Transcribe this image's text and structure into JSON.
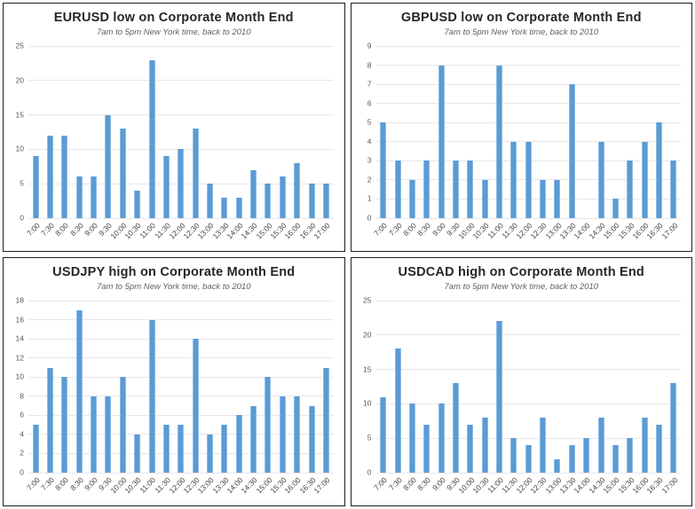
{
  "chart_data": [
    {
      "type": "bar",
      "title": "EURUSD low on Corporate Month End",
      "subtitle": "7am to 5pm New York time, back to 2010",
      "categories": [
        "7:00",
        "7:30",
        "8:00",
        "8:30",
        "9:00",
        "9:30",
        "10:00",
        "10:30",
        "11:00",
        "11:30",
        "12:00",
        "12:30",
        "13:00",
        "13:30",
        "14:00",
        "14:30",
        "15:00",
        "15:30",
        "16:00",
        "16:30",
        "17:00"
      ],
      "values": [
        9,
        12,
        12,
        6,
        6,
        15,
        13,
        4,
        23,
        9,
        10,
        13,
        5,
        3,
        3,
        7,
        5,
        6,
        8,
        5,
        5
      ],
      "xlabel": "",
      "ylabel": "",
      "ylim": [
        0,
        25
      ],
      "ytick_step": 5,
      "grid": true,
      "legend": "none"
    },
    {
      "type": "bar",
      "title": "GBPUSD low on Corporate Month End",
      "subtitle": "7am to 5pm New York time, back to 2010",
      "categories": [
        "7:00",
        "7:30",
        "8:00",
        "8:30",
        "9:00",
        "9:30",
        "10:00",
        "10:30",
        "11:00",
        "11:30",
        "12:00",
        "12:30",
        "13:00",
        "13:30",
        "14:00",
        "14:30",
        "15:00",
        "15:30",
        "16:00",
        "16:30",
        "17:00"
      ],
      "values": [
        5,
        3,
        2,
        3,
        8,
        3,
        3,
        2,
        8,
        4,
        4,
        2,
        2,
        7,
        0,
        4,
        1,
        3,
        4,
        5,
        3
      ],
      "xlabel": "",
      "ylabel": "",
      "ylim": [
        0,
        9
      ],
      "ytick_step": 1,
      "grid": true,
      "legend": "none"
    },
    {
      "type": "bar",
      "title": "USDJPY high on Corporate Month End",
      "subtitle": "7am to 5pm New York time, back to 2010",
      "categories": [
        "7:00",
        "7:30",
        "8:00",
        "8:30",
        "9:00",
        "9:30",
        "10:00",
        "10:30",
        "11:00",
        "11:30",
        "12:00",
        "12:30",
        "13:00",
        "13:30",
        "14:00",
        "14:30",
        "15:00",
        "15:30",
        "16:00",
        "16:30",
        "17:00"
      ],
      "values": [
        5,
        11,
        10,
        17,
        8,
        8,
        10,
        4,
        16,
        5,
        5,
        14,
        4,
        5,
        6,
        7,
        10,
        8,
        8,
        7,
        11
      ],
      "xlabel": "",
      "ylabel": "",
      "ylim": [
        0,
        18
      ],
      "ytick_step": 2,
      "grid": true,
      "legend": "none"
    },
    {
      "type": "bar",
      "title": "USDCAD high on Corporate Month End",
      "subtitle": "7am to 5pm New York time, back to 2010",
      "categories": [
        "7:00",
        "7:30",
        "8:00",
        "8:30",
        "9:00",
        "9:30",
        "10:00",
        "10:30",
        "11:00",
        "11:30",
        "12:00",
        "12:30",
        "13:00",
        "13:30",
        "14:00",
        "14:30",
        "15:00",
        "15:30",
        "16:00",
        "16:30",
        "17:00"
      ],
      "values": [
        11,
        18,
        10,
        7,
        10,
        13,
        7,
        8,
        22,
        5,
        4,
        8,
        2,
        4,
        5,
        8,
        4,
        5,
        8,
        7,
        13
      ],
      "xlabel": "",
      "ylabel": "",
      "ylim": [
        0,
        25
      ],
      "ytick_step": 5,
      "grid": true,
      "legend": "none"
    }
  ],
  "colors": {
    "bar_fill": "#5B9BD5",
    "bar_edge": "#8FBCE6",
    "gridline": "#E7E7E7",
    "axis_text": "#595959",
    "xaxis_text": "#444444",
    "title_text": "#262626",
    "subtitle_text": "#5F5F5F",
    "panel_border": "#1F1F1F",
    "page_bg": "#FFFFFF"
  }
}
